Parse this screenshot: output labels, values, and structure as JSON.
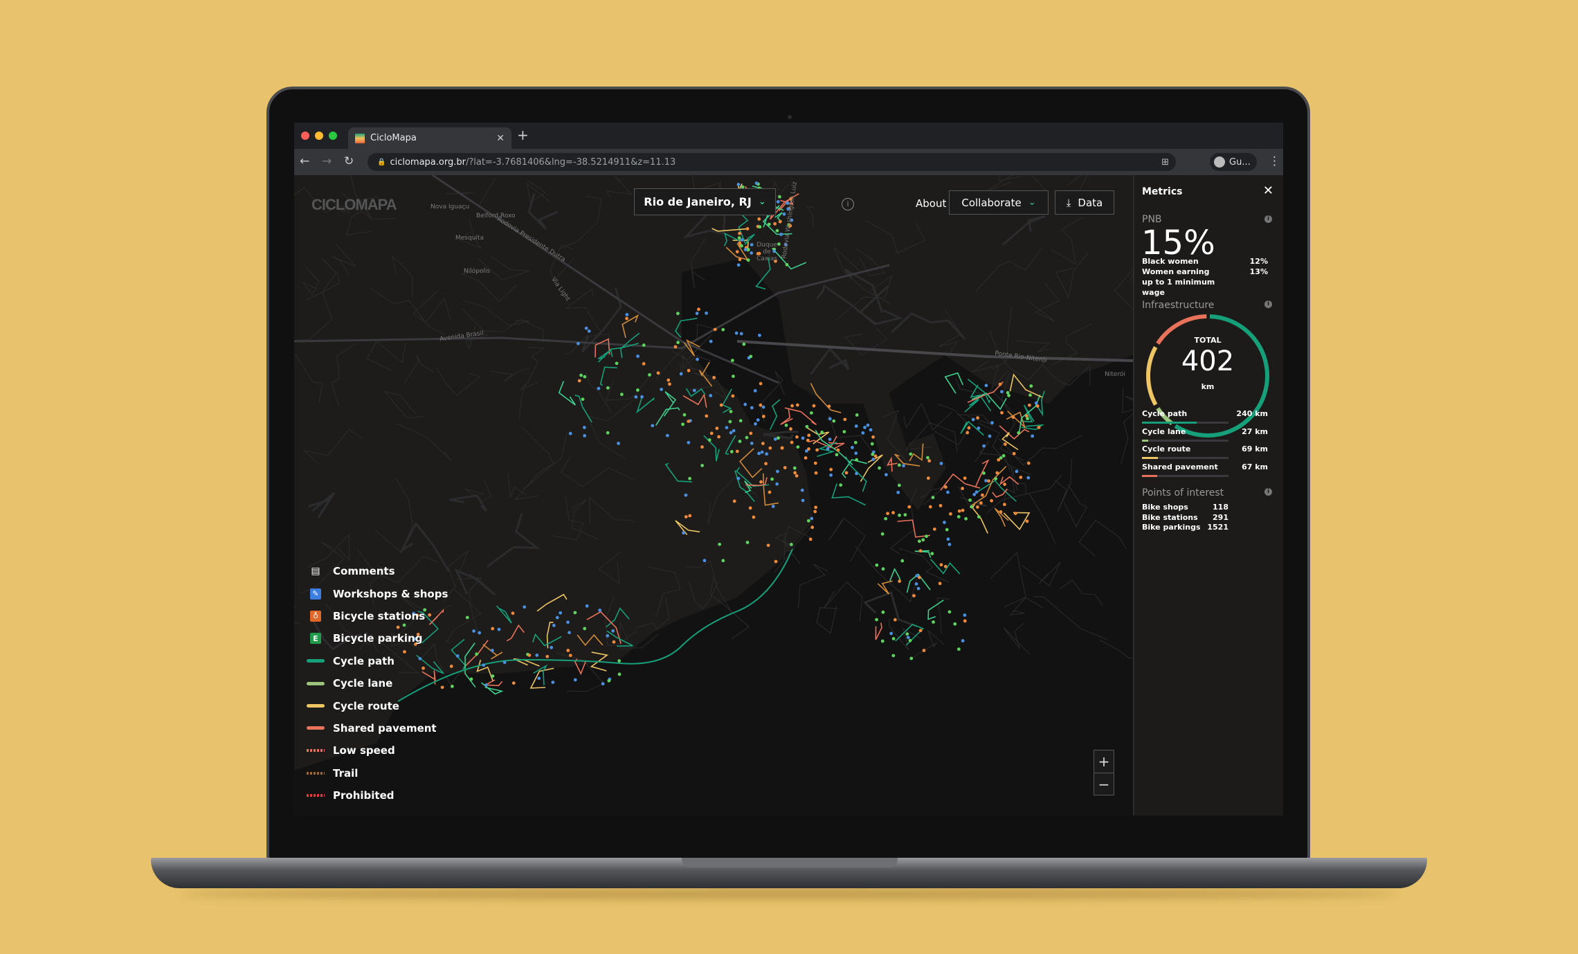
{
  "browser": {
    "tab_title": "CicloMapa",
    "url_host": "ciclomapa.org.br",
    "url_path": "/?lat=-3.7681406&lng=-38.5214911&z=11.13",
    "profile": "Gu..."
  },
  "header": {
    "logo": "CICLOMAPA",
    "city": "Rio de Janeiro, RJ",
    "about": "About",
    "collaborate": "Collaborate",
    "data": "Data"
  },
  "map_labels": [
    "Nova Iguaçu",
    "Belford Roxo",
    "Mesquita",
    "Nilópolis",
    "Duque de Caxias",
    "Rodovia Presidente Dutra",
    "Via Light",
    "Rodovia Washington Luiz",
    "Avenida Brasil",
    "Ponte Rio-Niterói",
    "Niterói"
  ],
  "legend": [
    {
      "label": "Comments",
      "icon": "comment-icon",
      "color": "#ffffff"
    },
    {
      "label": "Workshops & shops",
      "icon": "wrench-icon",
      "color": "#3b7de0"
    },
    {
      "label": "Bicycle stations",
      "icon": "bike-station-icon",
      "color": "#e0662a"
    },
    {
      "label": "Bicycle parking",
      "icon": "parking-icon",
      "color": "#1e9a4a"
    },
    {
      "label": "Cycle path",
      "icon": "line",
      "color": "#16a07a"
    },
    {
      "label": "Cycle lane",
      "icon": "line",
      "color": "#9cc47c"
    },
    {
      "label": "Cycle route",
      "icon": "line",
      "color": "#eec564"
    },
    {
      "label": "Shared pavement",
      "icon": "line",
      "color": "#e8725a"
    },
    {
      "label": "Low speed",
      "icon": "dash",
      "color": "#e8725a"
    },
    {
      "label": "Trail",
      "icon": "dash",
      "color": "#a0682a"
    },
    {
      "label": "Prohibited",
      "icon": "dash",
      "color": "#e83a3a"
    }
  ],
  "zoom": {
    "in": "+",
    "out": "−"
  },
  "metrics": {
    "title": "Metrics",
    "close": "✕",
    "pnb": {
      "title": "PNB",
      "value": "15%",
      "rows": [
        {
          "label": "Black women",
          "value": "12%"
        },
        {
          "label": "Women earning up to 1 minimum wage",
          "value": "13%"
        }
      ]
    },
    "infra": {
      "title": "Infraestructure",
      "total_label": "TOTAL",
      "total": 402,
      "unit": "km",
      "rows": [
        {
          "label": "Cycle path",
          "km": 240,
          "value": "240 km",
          "color": "#16a07a"
        },
        {
          "label": "Cycle lane",
          "km": 27,
          "value": "27 km",
          "color": "#9cc47c"
        },
        {
          "label": "Cycle route",
          "km": 69,
          "value": "69 km",
          "color": "#eec564"
        },
        {
          "label": "Shared pavement",
          "km": 67,
          "value": "67 km",
          "color": "#e8725a"
        }
      ]
    },
    "poi": {
      "title": "Points of interest",
      "rows": [
        {
          "label": "Bike shops",
          "value": "118"
        },
        {
          "label": "Bike stations",
          "value": "291"
        },
        {
          "label": "Bike parkings",
          "value": "1521"
        }
      ]
    }
  },
  "colors": {
    "background": "#e8c36b",
    "accent": "#3fcf8e",
    "dots": [
      "#5fd35f",
      "#f08a3c",
      "#4a8fe0"
    ]
  }
}
